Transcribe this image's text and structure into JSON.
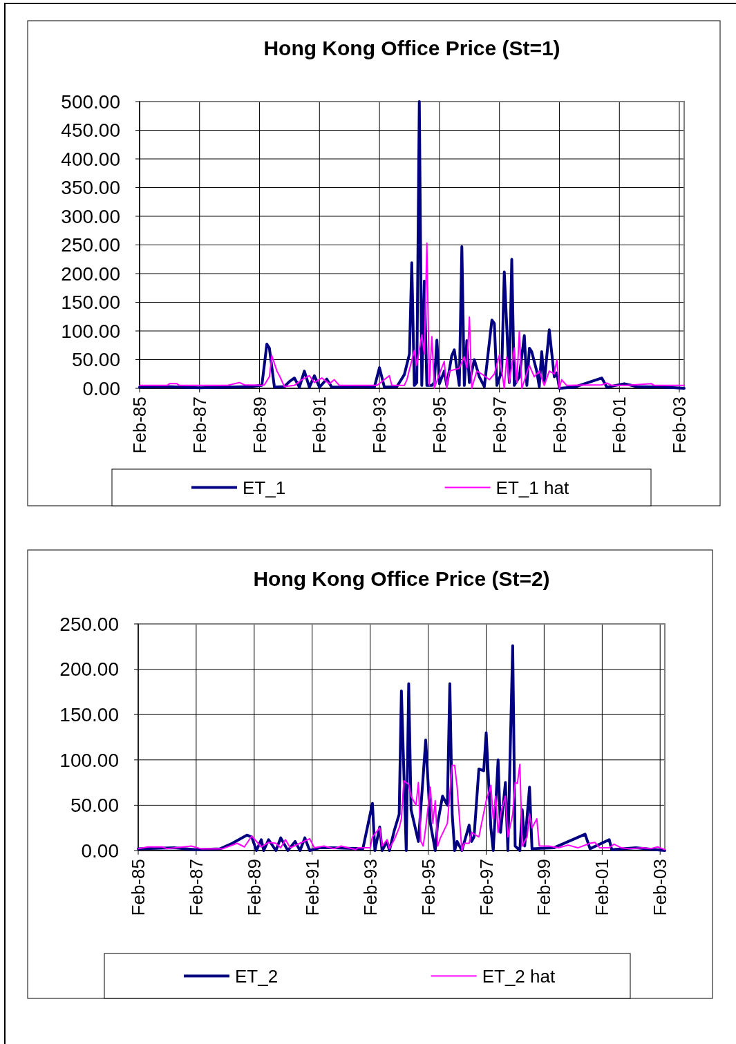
{
  "chart_data": [
    {
      "type": "line",
      "title": "Hong Kong Office Price (St=1)",
      "xlim": [
        "1985-02",
        "2003-04"
      ],
      "ylim": [
        0,
        500
      ],
      "xticks": [
        {
          "value": "1985-02",
          "label": "Feb-85"
        },
        {
          "value": "1987-02",
          "label": "Feb-87"
        },
        {
          "value": "1989-02",
          "label": "Feb-89"
        },
        {
          "value": "1991-02",
          "label": "Feb-91"
        },
        {
          "value": "1993-02",
          "label": "Feb-93"
        },
        {
          "value": "1995-02",
          "label": "Feb-95"
        },
        {
          "value": "1997-02",
          "label": "Feb-97"
        },
        {
          "value": "1999-02",
          "label": "Feb-99"
        },
        {
          "value": "2001-02",
          "label": "Feb-01"
        },
        {
          "value": "2003-02",
          "label": "Feb-03"
        }
      ],
      "yticks": [
        {
          "value": 0,
          "label": "0.00"
        },
        {
          "value": 50,
          "label": "50.00"
        },
        {
          "value": 100,
          "label": "100.00"
        },
        {
          "value": 150,
          "label": "150.00"
        },
        {
          "value": 200,
          "label": "200.00"
        },
        {
          "value": 250,
          "label": "250.00"
        },
        {
          "value": 300,
          "label": "300.00"
        },
        {
          "value": 350,
          "label": "350.00"
        },
        {
          "value": 400,
          "label": "400.00"
        },
        {
          "value": 450,
          "label": "450.00"
        },
        {
          "value": 500,
          "label": "500.00"
        }
      ],
      "grid": true,
      "legend": "bottom",
      "series": [
        {
          "name": "ET_1",
          "color": "#000080",
          "x": [
            "1985-02",
            "1986-01",
            "1987-02",
            "1988-01",
            "1988-10",
            "1989-03",
            "1989-05",
            "1989-06",
            "1989-08",
            "1989-12",
            "1990-02",
            "1990-04",
            "1990-06",
            "1990-08",
            "1990-10",
            "1990-12",
            "1991-02",
            "1991-05",
            "1991-07",
            "1992-01",
            "1992-07",
            "1992-12",
            "1993-02",
            "1993-04",
            "1993-09",
            "1993-12",
            "1994-02",
            "1994-03",
            "1994-04",
            "1994-05",
            "1994-06",
            "1994-07",
            "1994-08",
            "1994-09",
            "1994-11",
            "1994-12",
            "1995-01",
            "1995-02",
            "1995-04",
            "1995-05",
            "1995-07",
            "1995-08",
            "1995-10",
            "1995-11",
            "1995-12",
            "1996-01",
            "1996-02",
            "1996-04",
            "1996-06",
            "1996-08",
            "1996-11",
            "1996-12",
            "1997-01",
            "1997-03",
            "1997-04",
            "1997-06",
            "1997-07",
            "1997-08",
            "1997-10",
            "1997-12",
            "1998-01",
            "1998-02",
            "1998-03",
            "1998-05",
            "1998-06",
            "1998-07",
            "1998-08",
            "1998-10",
            "1998-12",
            "1999-01",
            "1999-02",
            "1999-08",
            "2000-07",
            "2000-09",
            "2001-04",
            "2001-09",
            "2002-08",
            "2003-04"
          ],
          "values": [
            2,
            3,
            1,
            2,
            3,
            5,
            77,
            70,
            2,
            3,
            12,
            18,
            2,
            30,
            2,
            22,
            2,
            16,
            2,
            2,
            3,
            2,
            36,
            2,
            3,
            24,
            60,
            219,
            5,
            10,
            500,
            5,
            187,
            5,
            5,
            10,
            84,
            8,
            30,
            5,
            57,
            67,
            5,
            247,
            5,
            83,
            10,
            50,
            20,
            3,
            119,
            113,
            5,
            30,
            203,
            10,
            225,
            5,
            20,
            92,
            5,
            70,
            64,
            30,
            3,
            64,
            10,
            102,
            20,
            27,
            0,
            2,
            18,
            2,
            8,
            3,
            2,
            0
          ]
        },
        {
          "name": "ET_1 hat",
          "color": "#ff00ff",
          "x": [
            "1985-02",
            "1986-01",
            "1986-02",
            "1986-05",
            "1986-06",
            "1988-01",
            "1988-06",
            "1988-08",
            "1989-03",
            "1989-04",
            "1989-06",
            "1989-07",
            "1989-09",
            "1989-10",
            "1989-12",
            "1990-04",
            "1990-07",
            "1990-10",
            "1990-12",
            "1991-03",
            "1991-06",
            "1991-08",
            "1991-10",
            "1993-01",
            "1993-06",
            "1993-07",
            "1993-12",
            "1994-01",
            "1994-04",
            "1994-05",
            "1994-07",
            "1994-08",
            "1994-09",
            "1994-10",
            "1994-11",
            "1994-12",
            "1995-02",
            "1995-04",
            "1995-05",
            "1995-06",
            "1995-10",
            "1995-12",
            "1996-01",
            "1996-02",
            "1996-03",
            "1996-05",
            "1996-07",
            "1996-10",
            "1996-12",
            "1997-02",
            "1997-04",
            "1997-05",
            "1997-06",
            "1997-08",
            "1997-09",
            "1997-10",
            "1997-11",
            "1998-02",
            "1998-04",
            "1998-06",
            "1998-08",
            "1998-10",
            "1998-12",
            "1999-01",
            "1999-02",
            "1999-03",
            "1999-05",
            "2000-07",
            "2000-09",
            "2000-11",
            "2001-05",
            "2002-03",
            "2002-04",
            "2003-04"
          ],
          "values": [
            5,
            5,
            8,
            8,
            5,
            5,
            10,
            6,
            5,
            6,
            20,
            57,
            30,
            22,
            3,
            5,
            15,
            22,
            10,
            18,
            8,
            15,
            5,
            5,
            22,
            5,
            5,
            15,
            66,
            40,
            93,
            60,
            253,
            5,
            90,
            0,
            25,
            47,
            0,
            30,
            35,
            55,
            35,
            124,
            0,
            30,
            25,
            15,
            25,
            58,
            0,
            55,
            10,
            70,
            10,
            99,
            0,
            40,
            20,
            30,
            5,
            30,
            25,
            50,
            0,
            15,
            5,
            6,
            9,
            5,
            5,
            8,
            5,
            5
          ]
        }
      ]
    },
    {
      "type": "line",
      "title": "Hong Kong Office Price (St=2)",
      "xlim": [
        "1985-02",
        "2003-04"
      ],
      "ylim": [
        0,
        250
      ],
      "xticks": [
        {
          "value": "1985-02",
          "label": "Feb-85"
        },
        {
          "value": "1987-02",
          "label": "Feb-87"
        },
        {
          "value": "1989-02",
          "label": "Feb-89"
        },
        {
          "value": "1991-02",
          "label": "Feb-91"
        },
        {
          "value": "1993-02",
          "label": "Feb-93"
        },
        {
          "value": "1995-02",
          "label": "Feb-95"
        },
        {
          "value": "1997-02",
          "label": "Feb-97"
        },
        {
          "value": "1999-02",
          "label": "Feb-99"
        },
        {
          "value": "2001-02",
          "label": "Feb-01"
        },
        {
          "value": "2003-02",
          "label": "Feb-03"
        }
      ],
      "yticks": [
        {
          "value": 0,
          "label": "0.00"
        },
        {
          "value": 50,
          "label": "50.00"
        },
        {
          "value": 100,
          "label": "100.00"
        },
        {
          "value": 150,
          "label": "150.00"
        },
        {
          "value": 200,
          "label": "200.00"
        },
        {
          "value": 250,
          "label": "250.00"
        }
      ],
      "grid": true,
      "legend": "bottom",
      "series": [
        {
          "name": "ET_2",
          "color": "#000080",
          "x": [
            "1985-02",
            "1986-05",
            "1987-02",
            "1987-12",
            "1988-05",
            "1988-11",
            "1989-01",
            "1989-03",
            "1989-05",
            "1989-06",
            "1989-08",
            "1989-11",
            "1990-01",
            "1990-04",
            "1990-07",
            "1990-09",
            "1990-11",
            "1991-01",
            "1991-05",
            "1991-11",
            "1992-11",
            "1993-03",
            "1993-04",
            "1993-06",
            "1993-07",
            "1993-09",
            "1993-10",
            "1993-12",
            "1994-02",
            "1994-03",
            "1994-05",
            "1994-06",
            "1994-07",
            "1994-10",
            "1994-12",
            "1995-01",
            "1995-03",
            "1995-05",
            "1995-06",
            "1995-08",
            "1995-10",
            "1995-11",
            "1995-12",
            "1996-01",
            "1996-02",
            "1996-04",
            "1996-07",
            "1996-08",
            "1996-09",
            "1996-11",
            "1997-01",
            "1997-02",
            "1997-04",
            "1997-05",
            "1997-07",
            "1997-08",
            "1997-10",
            "1997-11",
            "1998-01",
            "1998-02",
            "1998-04",
            "1998-05",
            "1998-06",
            "1998-08",
            "1998-09",
            "1999-06",
            "2000-07",
            "2000-09",
            "2001-05",
            "2001-06",
            "2002-04",
            "2003-04"
          ],
          "values": [
            2,
            3,
            1,
            2,
            8,
            17,
            15,
            0,
            12,
            0,
            12,
            0,
            14,
            0,
            10,
            0,
            14,
            0,
            3,
            3,
            2,
            52,
            0,
            26,
            0,
            10,
            0,
            22,
            40,
            176,
            0,
            184,
            45,
            10,
            83,
            122,
            30,
            0,
            30,
            60,
            50,
            184,
            40,
            0,
            10,
            0,
            28,
            10,
            15,
            90,
            88,
            130,
            25,
            0,
            100,
            20,
            75,
            0,
            226,
            5,
            0,
            45,
            5,
            70,
            2,
            3,
            18,
            2,
            12,
            1,
            3,
            0
          ]
        },
        {
          "name": "ET_2 hat",
          "color": "#ff00ff",
          "x": [
            "1985-02",
            "1985-06",
            "1985-12",
            "1986-02",
            "1986-12",
            "1987-04",
            "1988-01",
            "1988-07",
            "1988-10",
            "1989-01",
            "1989-05",
            "1989-08",
            "1989-11",
            "1990-01",
            "1990-03",
            "1990-05",
            "1990-09",
            "1991-01",
            "1991-03",
            "1991-07",
            "1991-11",
            "1992-02",
            "1992-08",
            "1992-09",
            "1993-02",
            "1993-03",
            "1993-06",
            "1993-07",
            "1993-09",
            "1993-10",
            "1993-12",
            "1994-02",
            "1994-03",
            "1994-04",
            "1994-06",
            "1994-07",
            "1994-09",
            "1994-10",
            "1994-11",
            "1994-12",
            "1995-01",
            "1995-03",
            "1995-04",
            "1995-05",
            "1995-06",
            "1995-07",
            "1995-10",
            "1995-12",
            "1996-01",
            "1996-02",
            "1996-04",
            "1996-05",
            "1996-07",
            "1996-08",
            "1996-11",
            "1997-02",
            "1997-04",
            "1997-05",
            "1997-06",
            "1997-07",
            "1997-08",
            "1997-10",
            "1997-11",
            "1998-01",
            "1998-02",
            "1998-03",
            "1998-04",
            "1998-05",
            "1998-07",
            "1998-08",
            "1998-09",
            "1998-11",
            "1998-12",
            "1999-04",
            "1999-08",
            "1999-12",
            "2000-04",
            "2000-09",
            "2000-11",
            "2001-01",
            "2001-05",
            "2001-07",
            "2001-10",
            "2002-01",
            "2002-07",
            "2002-10",
            "2003-01",
            "2003-04"
          ],
          "values": [
            2,
            4,
            4,
            2,
            5,
            2,
            2,
            8,
            4,
            16,
            4,
            9,
            8,
            3,
            12,
            3,
            8,
            13,
            3,
            5,
            2,
            5,
            1,
            3,
            3,
            15,
            25,
            5,
            12,
            2,
            12,
            25,
            35,
            77,
            73,
            60,
            50,
            75,
            10,
            5,
            25,
            70,
            30,
            55,
            5,
            13,
            30,
            94,
            94,
            70,
            0,
            8,
            8,
            20,
            15,
            55,
            72,
            35,
            60,
            20,
            40,
            60,
            15,
            40,
            75,
            74,
            95,
            5,
            15,
            40,
            25,
            35,
            5,
            5,
            3,
            6,
            3,
            8,
            9,
            3,
            3,
            7,
            3,
            2,
            3,
            2,
            4,
            1
          ]
        }
      ]
    }
  ]
}
